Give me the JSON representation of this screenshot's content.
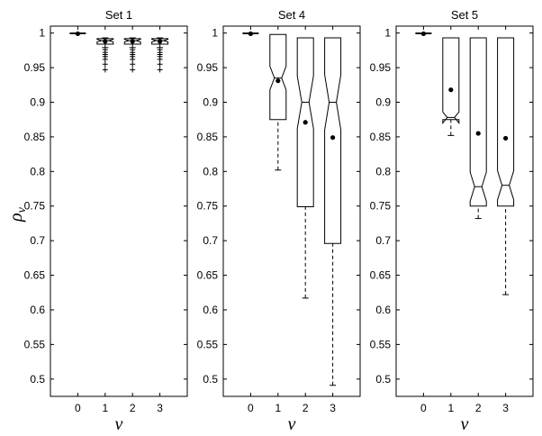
{
  "chart_data": {
    "type": "box",
    "ylabel": "ρ",
    "ylabel_subscript": "v",
    "xlabel": "v",
    "ylim": [
      0.475,
      1.01
    ],
    "yticks": [
      "0.5",
      "0.55",
      "0.6",
      "0.65",
      "0.7",
      "0.75",
      "0.8",
      "0.85",
      "0.9",
      "0.95",
      "1"
    ],
    "categories": [
      "0",
      "1",
      "2",
      "3"
    ],
    "panels": [
      {
        "title": "Set 1",
        "boxes": [
          {
            "cat": "0",
            "q1": 0.999,
            "median": 0.999,
            "q3": 1.0,
            "whisker_low": 0.999,
            "whisker_high": 1.0,
            "mean": 0.999,
            "notch": [
              0.999,
              1.0
            ],
            "outliers": []
          },
          {
            "cat": "1",
            "q1": 0.984,
            "median": 0.989,
            "q3": 0.992,
            "whisker_low": 0.979,
            "whisker_high": 0.993,
            "mean": 0.988,
            "notch": [
              0.987,
              0.991
            ],
            "outliers": [
              0.976,
              0.972,
              0.969,
              0.966,
              0.962,
              0.955,
              0.947
            ]
          },
          {
            "cat": "2",
            "q1": 0.984,
            "median": 0.989,
            "q3": 0.992,
            "whisker_low": 0.979,
            "whisker_high": 0.993,
            "mean": 0.988,
            "notch": [
              0.987,
              0.991
            ],
            "outliers": [
              0.976,
              0.972,
              0.969,
              0.966,
              0.962,
              0.955,
              0.947
            ]
          },
          {
            "cat": "3",
            "q1": 0.984,
            "median": 0.989,
            "q3": 0.992,
            "whisker_low": 0.979,
            "whisker_high": 0.993,
            "mean": 0.988,
            "notch": [
              0.987,
              0.991
            ],
            "outliers": [
              0.976,
              0.972,
              0.969,
              0.966,
              0.962,
              0.955,
              0.947
            ]
          }
        ]
      },
      {
        "title": "Set 4",
        "boxes": [
          {
            "cat": "0",
            "q1": 0.999,
            "median": 0.999,
            "q3": 1.0,
            "whisker_low": 0.999,
            "whisker_high": 1.0,
            "mean": 0.999,
            "notch": [
              0.999,
              1.0
            ],
            "outliers": []
          },
          {
            "cat": "1",
            "q1": 0.875,
            "median": 0.935,
            "q3": 0.998,
            "whisker_low": 0.802,
            "whisker_high": 0.998,
            "mean": 0.931,
            "notch": [
              0.918,
              0.952
            ],
            "outliers": []
          },
          {
            "cat": "2",
            "q1": 0.749,
            "median": 0.9,
            "q3": 0.993,
            "whisker_low": 0.617,
            "whisker_high": 0.993,
            "mean": 0.871,
            "notch": [
              0.862,
              0.938
            ],
            "outliers": []
          },
          {
            "cat": "3",
            "q1": 0.696,
            "median": 0.9,
            "q3": 0.993,
            "whisker_low": 0.491,
            "whisker_high": 0.993,
            "mean": 0.849,
            "notch": [
              0.86,
              0.94
            ],
            "outliers": []
          }
        ]
      },
      {
        "title": "Set 5",
        "boxes": [
          {
            "cat": "0",
            "q1": 0.999,
            "median": 0.999,
            "q3": 1.0,
            "whisker_low": 0.999,
            "whisker_high": 1.0,
            "mean": 0.999,
            "notch": [
              0.999,
              1.0
            ],
            "outliers": []
          },
          {
            "cat": "1",
            "q1": 0.875,
            "median": 0.878,
            "q3": 0.993,
            "whisker_low": 0.852,
            "whisker_high": 0.993,
            "mean": 0.918,
            "notch": [
              0.87,
              0.886
            ],
            "outliers": []
          },
          {
            "cat": "2",
            "q1": 0.75,
            "median": 0.778,
            "q3": 0.993,
            "whisker_low": 0.732,
            "whisker_high": 0.993,
            "mean": 0.855,
            "notch": [
              0.757,
              0.799
            ],
            "outliers": []
          },
          {
            "cat": "3",
            "q1": 0.75,
            "median": 0.78,
            "q3": 0.993,
            "whisker_low": 0.622,
            "whisker_high": 0.993,
            "mean": 0.848,
            "notch": [
              0.759,
              0.801
            ],
            "outliers": []
          }
        ]
      }
    ]
  }
}
